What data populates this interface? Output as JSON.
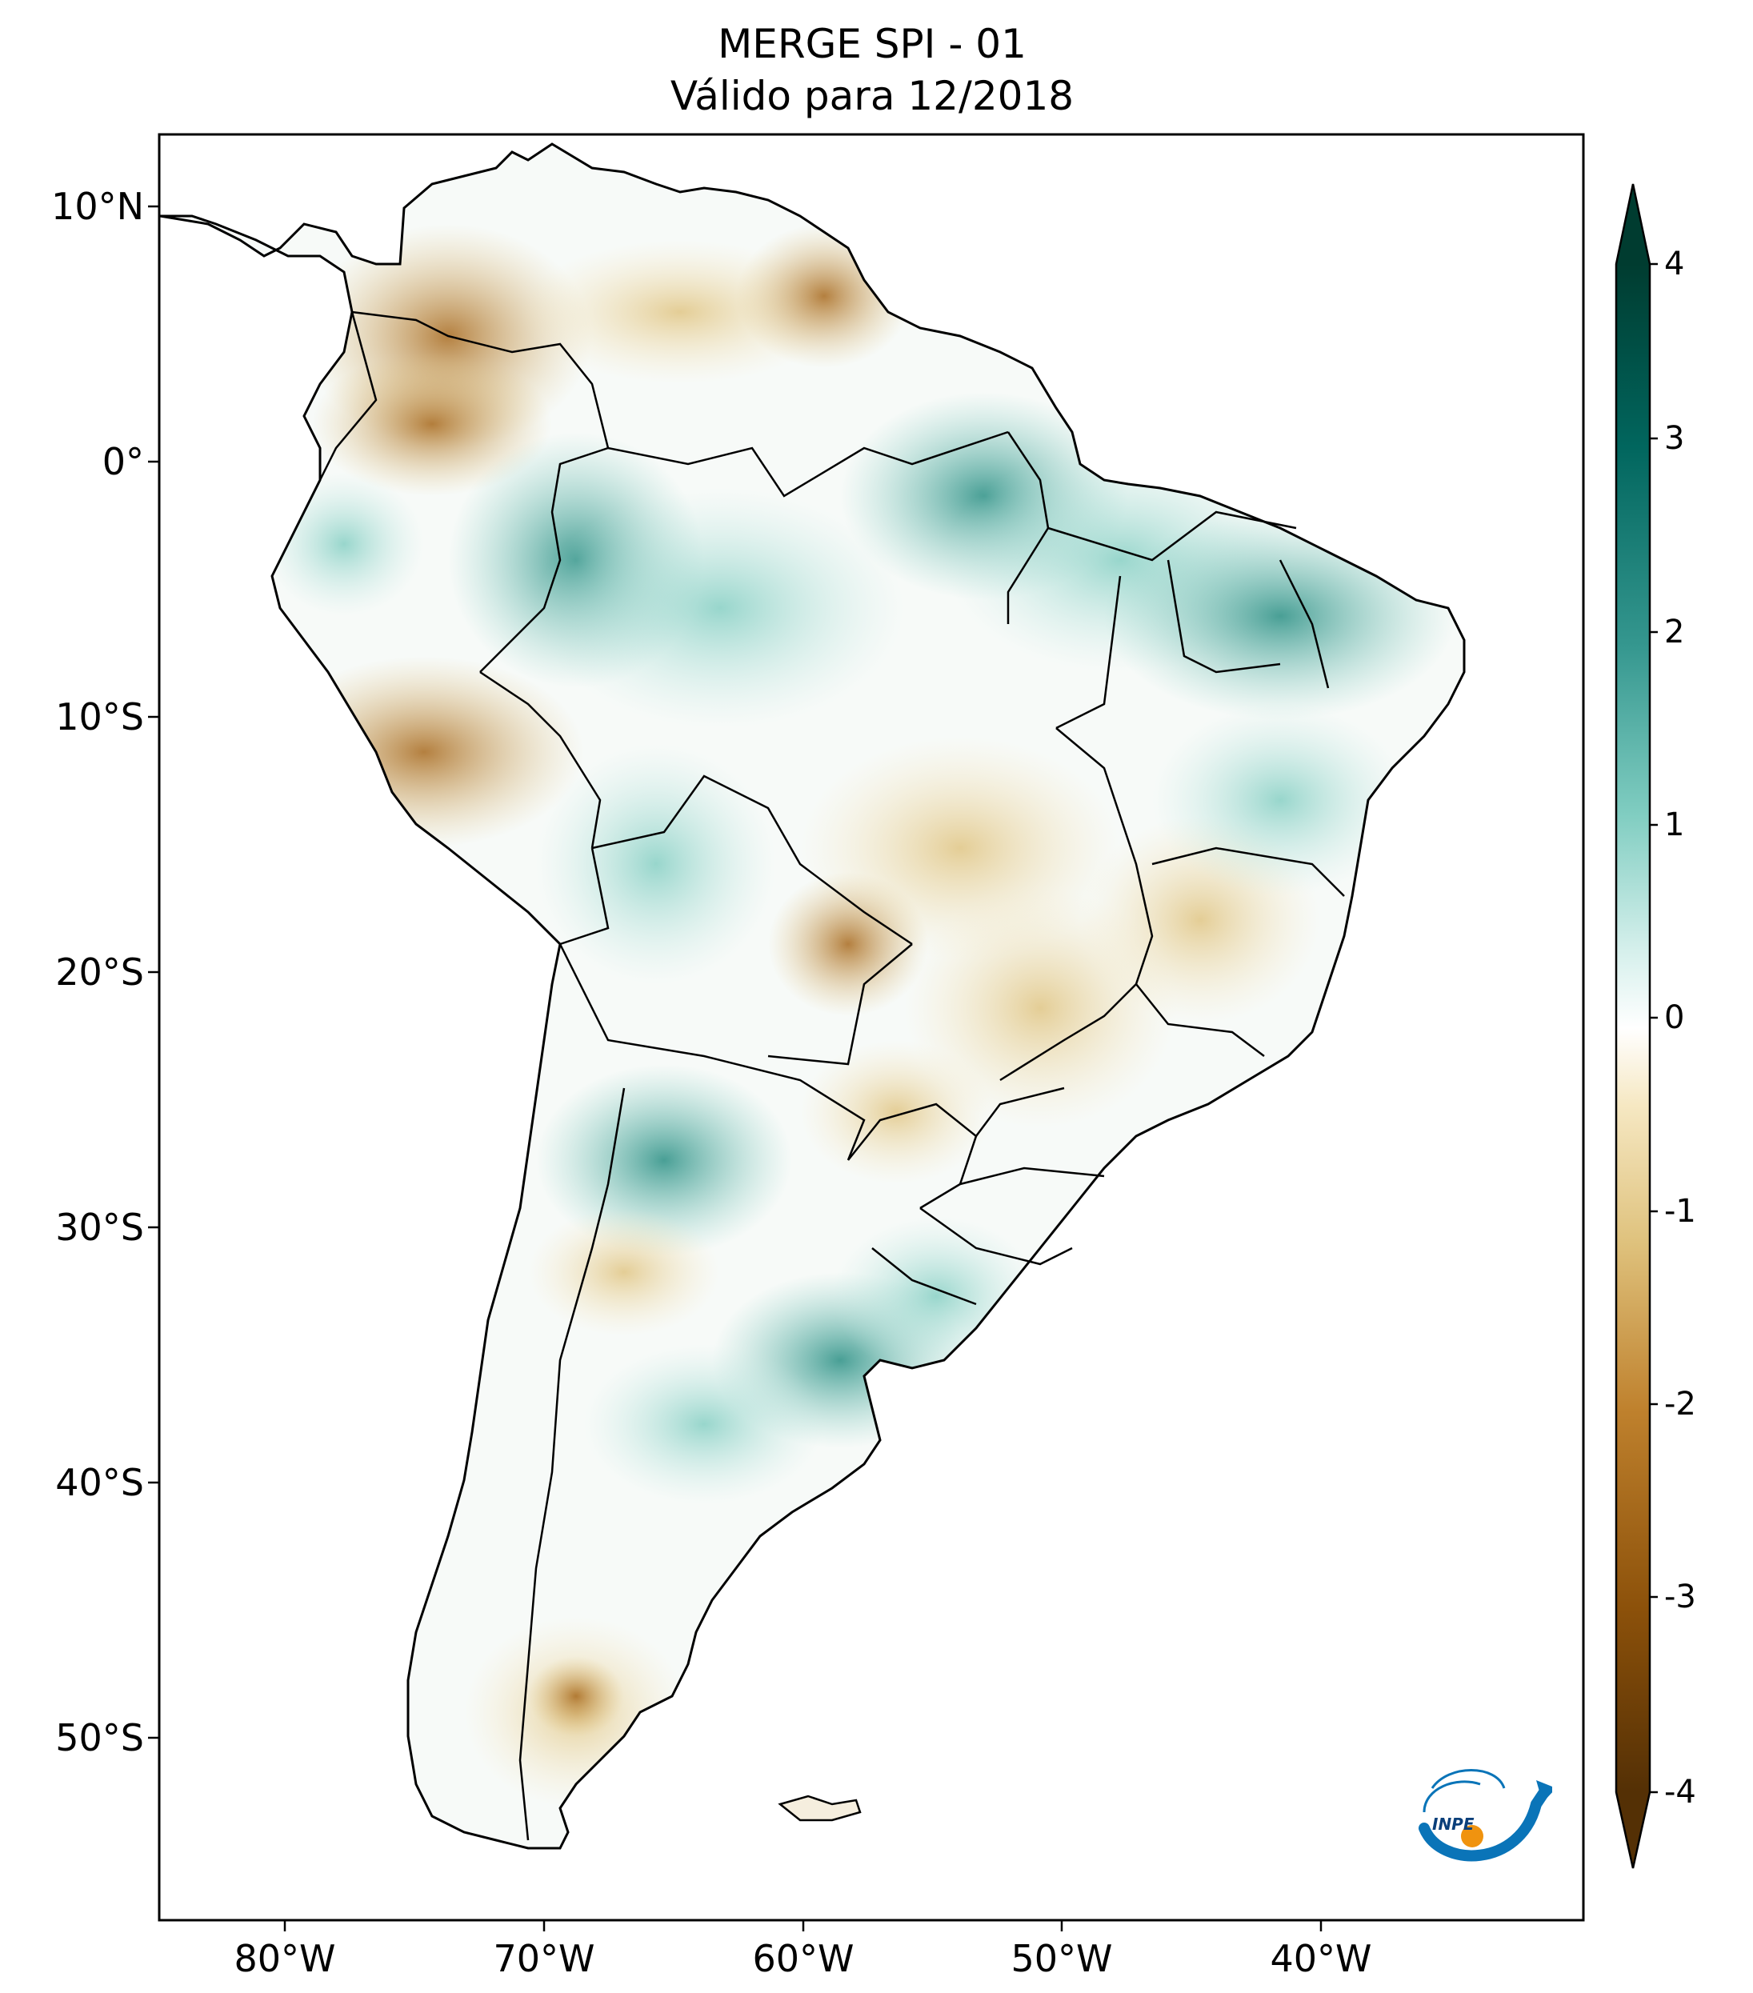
{
  "title": {
    "line1": "MERGE   SPI - 01",
    "line2": "Válido para 12/2018"
  },
  "lat_ticks": [
    "10°N",
    "0°",
    "10°S",
    "20°S",
    "30°S",
    "40°S",
    "50°S"
  ],
  "lon_ticks": [
    "80°W",
    "70°W",
    "60°W",
    "50°W",
    "40°W"
  ],
  "colorbar": {
    "labels": [
      "4",
      "3",
      "2",
      "1",
      "0",
      "-1",
      "-2",
      "-3",
      "-4"
    ],
    "min": -4,
    "max": 4,
    "extend": "both",
    "colors": [
      "#543005",
      "#8c510a",
      "#bf812d",
      "#dfc27d",
      "#f6e8c3",
      "#ffffff",
      "#c7eae5",
      "#80cdc1",
      "#35978f",
      "#01665e",
      "#003c30"
    ]
  },
  "map": {
    "region": "South America",
    "variable": "SPI-1",
    "lon_range": [
      -85,
      -30
    ],
    "lat_range": [
      -57,
      13
    ]
  },
  "logo": {
    "name": "INPE"
  }
}
